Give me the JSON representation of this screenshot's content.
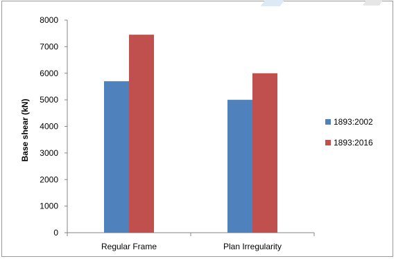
{
  "chart_data": {
    "type": "bar",
    "categories": [
      "Regular Frame",
      "Plan Irregularity"
    ],
    "series": [
      {
        "name": "1893:2002",
        "values": [
          5700,
          5000
        ],
        "color": "#4f81bd"
      },
      {
        "name": "1893:2016",
        "values": [
          7450,
          6000
        ],
        "color": "#c0504d"
      }
    ],
    "title": "",
    "xlabel": "",
    "ylabel": "Base shear (kN)",
    "ylim": [
      0,
      8000
    ],
    "yticks": [
      0,
      1000,
      2000,
      3000,
      4000,
      5000,
      6000,
      7000,
      8000
    ],
    "grid": false,
    "legend_position": "right"
  }
}
